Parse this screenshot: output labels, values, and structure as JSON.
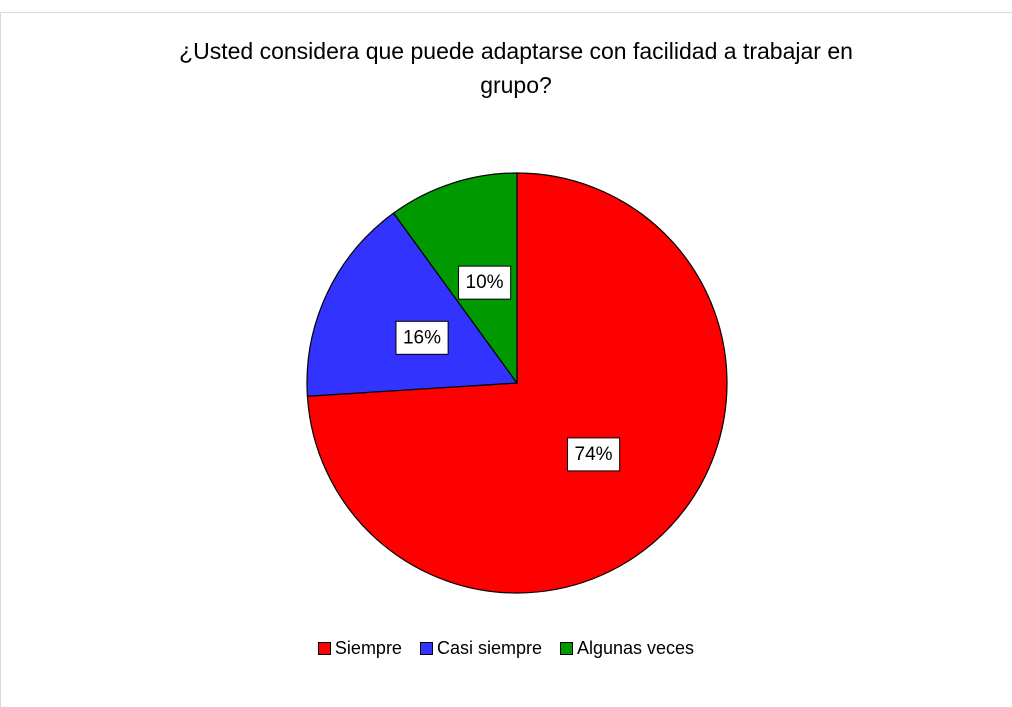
{
  "chart_data": {
    "type": "pie",
    "title": "¿Usted considera que puede adaptarse con facilidad a trabajar en grupo?",
    "categories": [
      "Siempre",
      "Casi siempre",
      "Algunas veces"
    ],
    "values": [
      74,
      16,
      10
    ],
    "value_labels": [
      "74%",
      "16%",
      "10%"
    ],
    "colors": [
      "#ff0000",
      "#3333ff",
      "#009900"
    ],
    "legend": "bottom"
  }
}
